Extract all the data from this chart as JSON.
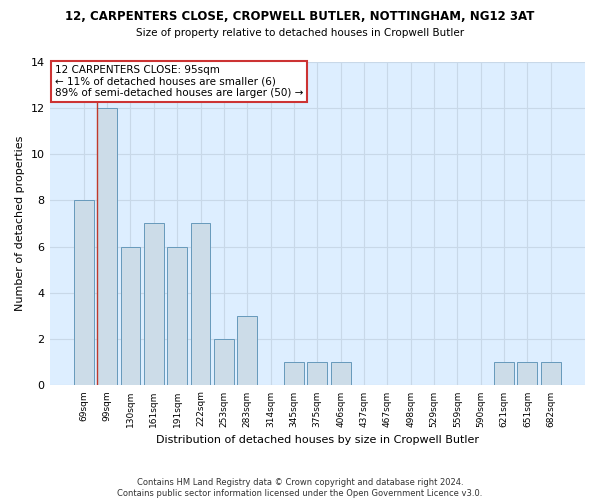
{
  "title1": "12, CARPENTERS CLOSE, CROPWELL BUTLER, NOTTINGHAM, NG12 3AT",
  "title2": "Size of property relative to detached houses in Cropwell Butler",
  "xlabel": "Distribution of detached houses by size in Cropwell Butler",
  "ylabel": "Number of detached properties",
  "bar_labels": [
    "69sqm",
    "99sqm",
    "130sqm",
    "161sqm",
    "191sqm",
    "222sqm",
    "253sqm",
    "283sqm",
    "314sqm",
    "345sqm",
    "375sqm",
    "406sqm",
    "437sqm",
    "467sqm",
    "498sqm",
    "529sqm",
    "559sqm",
    "590sqm",
    "621sqm",
    "651sqm",
    "682sqm"
  ],
  "bar_values": [
    8,
    12,
    6,
    7,
    6,
    7,
    2,
    3,
    0,
    1,
    1,
    1,
    0,
    0,
    0,
    0,
    0,
    0,
    1,
    1,
    1
  ],
  "bar_color": "#ccdce8",
  "bar_edge_color": "#6699bb",
  "vline_color": "#c0392b",
  "ylim": [
    0,
    14
  ],
  "yticks": [
    0,
    2,
    4,
    6,
    8,
    10,
    12,
    14
  ],
  "annotation_title": "12 CARPENTERS CLOSE: 95sqm",
  "annotation_line2": "← 11% of detached houses are smaller (6)",
  "annotation_line3": "89% of semi-detached houses are larger (50) →",
  "annotation_box_color": "#ffffff",
  "annotation_border_color": "#cc3333",
  "footer": "Contains HM Land Registry data © Crown copyright and database right 2024.\nContains public sector information licensed under the Open Government Licence v3.0.",
  "grid_color": "#c8d8e8",
  "background_color": "#ddeeff"
}
